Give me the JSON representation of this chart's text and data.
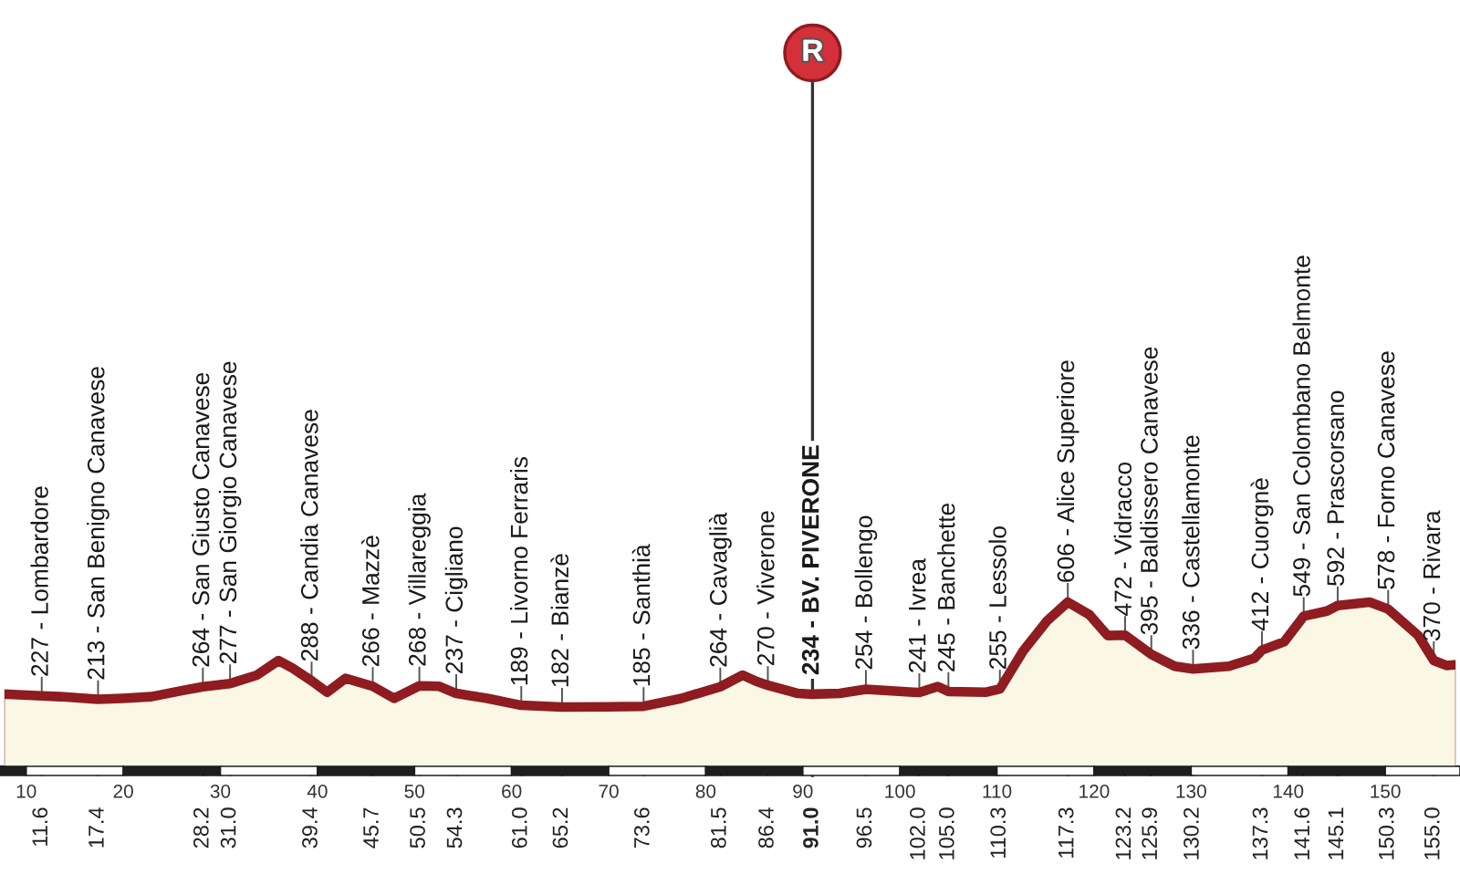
{
  "chart_data": {
    "type": "area",
    "x": [
      7.3,
      11.6,
      13.5,
      17.4,
      19.9,
      22.9,
      26.1,
      28.2,
      31.0,
      33.7,
      36.0,
      37.4,
      39.4,
      41.0,
      42.9,
      45.7,
      47.9,
      50.5,
      52.5,
      54.3,
      57.5,
      61.0,
      65.2,
      69.9,
      73.6,
      77.5,
      81.5,
      83.8,
      85.2,
      86.4,
      89.5,
      91.0,
      93.8,
      96.5,
      101.4,
      102.0,
      103.9,
      105.0,
      108.9,
      110.3,
      112.7,
      115.2,
      117.3,
      119.5,
      121.4,
      123.2,
      125.9,
      128.3,
      130.2,
      133.9,
      136.5,
      137.3,
      139.6,
      141.6,
      144.0,
      145.1,
      148.4,
      150.3,
      153.4,
      155.0,
      156.3,
      157.7
    ],
    "values": [
      235,
      227,
      224,
      213,
      217,
      224,
      249,
      264,
      277,
      310,
      370,
      340,
      288,
      242,
      298,
      266,
      217,
      268,
      266,
      237,
      217,
      189,
      182,
      183,
      185,
      217,
      264,
      311,
      286,
      270,
      237,
      234,
      237,
      254,
      242,
      241,
      265,
      245,
      242,
      255,
      409,
      532,
      606,
      556,
      471,
      472,
      395,
      347,
      336,
      347,
      379,
      412,
      446,
      549,
      570,
      592,
      606,
      578,
      471,
      370,
      350,
      355
    ],
    "value_labels": [
      null,
      "227 - Lombardore",
      null,
      "213 - San Benigno Canavese",
      null,
      null,
      null,
      "264 - San Giusto Canavese",
      "277 - San Giorgio Canavese",
      null,
      null,
      null,
      "288 - Candia Canavese",
      null,
      null,
      "266 - Mazzè",
      null,
      "268 - Villareggia",
      null,
      "237 - Cigliano",
      null,
      "189 - Livorno Ferraris",
      "182 - Bianzè",
      null,
      "185 - Santhià",
      null,
      "264 - Cavaglià",
      null,
      null,
      "270 - Viverone",
      null,
      "234 - BV. PIVERONE",
      null,
      "254 - Bollengo",
      null,
      "241 - Ivrea",
      null,
      "245 - Banchette",
      null,
      "255 - Lessolo",
      null,
      null,
      "606 - Alice Superiore",
      null,
      null,
      "472 - Vidracco",
      "395 - Baldissero Canavese",
      null,
      "336 - Castellamonte",
      null,
      null,
      "412 - Cuorgnè",
      null,
      "549 - San Colombano Belmonte",
      null,
      "592 - Prascorsano",
      null,
      "578 - Forno Canavese",
      null,
      "370 - Rivara",
      null,
      null
    ],
    "color": "#fbf7e5",
    "xlim": [
      7.3,
      157.7
    ],
    "xticks": [
      11.6,
      17.4,
      28.2,
      {
        "value": 31,
        "label": "31.0"
      },
      39.4,
      45.7,
      50.5,
      54.3,
      {
        "value": 61,
        "label": "61.0"
      },
      65.2,
      73.6,
      81.5,
      86.4,
      {
        "value": 91,
        "label": "91.0"
      },
      96.5,
      {
        "value": 102,
        "label": "102.0"
      },
      {
        "value": 105,
        "label": "105.0"
      },
      110.3,
      117.3,
      123.2,
      125.9,
      130.2,
      137.3,
      141.6,
      145.1,
      150.3,
      {
        "value": 155,
        "label": "155.0"
      }
    ],
    "x2lim": [
      7.3,
      157.7
    ],
    "x2ticks": [
      10,
      20,
      30,
      40,
      50,
      60,
      70,
      80,
      90,
      100,
      110,
      120,
      130,
      140,
      150
    ],
    "grid": "x",
    "tick_labels": "x",
    "ref_lines": [
      {
        "axis": "x",
        "value": 91,
        "label": "R",
        "color": "#333333"
      }
    ]
  }
}
